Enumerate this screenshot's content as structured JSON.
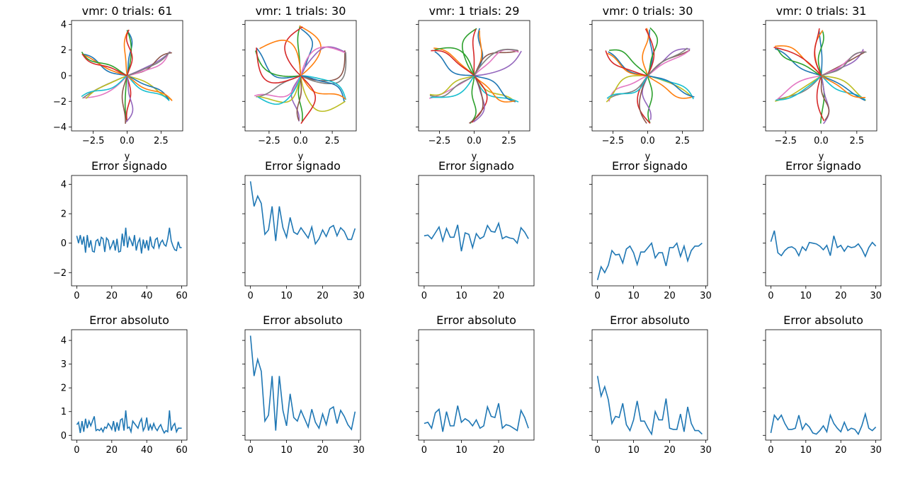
{
  "colors": {
    "series": [
      "#1f77b4",
      "#ff7f0e",
      "#2ca02c",
      "#d62728",
      "#9467bd",
      "#8c564b",
      "#e377c2",
      "#7f7f7f",
      "#bcbd22",
      "#17becf"
    ],
    "line": "#1f77b4"
  },
  "chart_data": [
    {
      "id": "traj-0",
      "type": "line",
      "title": "vmr: 0 trials: 61",
      "xlabel": "y",
      "xlim": [
        -4.1,
        4.1
      ],
      "ylim": [
        -4.3,
        4.3
      ],
      "xticks": [
        -2.5,
        0.0,
        2.5
      ],
      "xtick_labels": [
        "−2.5",
        "0.0",
        "2.5"
      ],
      "yticks": [
        -4,
        -2,
        0,
        2,
        4
      ],
      "ytick_labels": [
        "−4",
        "−2",
        "0",
        "2",
        "4"
      ],
      "targets": [
        [
          0,
          3.6
        ],
        [
          3.2,
          1.8
        ],
        [
          3.2,
          -1.8
        ],
        [
          0,
          -3.6
        ],
        [
          -3.2,
          -1.8
        ],
        [
          -3.2,
          1.8
        ]
      ],
      "trajectories_per_target": 4,
      "curvature": 0.12
    },
    {
      "id": "traj-1",
      "type": "line",
      "title": "vmr: 1 trials: 30",
      "xlabel": "y",
      "xlim": [
        -4.4,
        4.4
      ],
      "ylim": [
        -4.3,
        4.3
      ],
      "xticks": [
        -2.5,
        0.0,
        2.5
      ],
      "xtick_labels": [
        "−2.5",
        "0.0",
        "2.5"
      ],
      "yticks": [
        -4,
        -2,
        0,
        2,
        4
      ],
      "ytick_labels": [
        "",
        "",
        "",
        "",
        ""
      ],
      "targets": [
        [
          0,
          3.8
        ],
        [
          3.5,
          1.9
        ],
        [
          3.4,
          -2.0
        ],
        [
          0,
          -3.6
        ],
        [
          -3.5,
          -1.7
        ],
        [
          -3.4,
          2.1
        ]
      ],
      "trajectories_per_target": 4,
      "curvature": 0.45
    },
    {
      "id": "traj-2",
      "type": "line",
      "title": "vmr: 1 trials: 29",
      "xlabel": "y",
      "xlim": [
        -4.0,
        4.0
      ],
      "ylim": [
        -4.3,
        4.3
      ],
      "xticks": [
        -2.5,
        0.0,
        2.5
      ],
      "xtick_labels": [
        "−2.5",
        "0.0",
        "2.5"
      ],
      "yticks": [
        -4,
        -2,
        0,
        2,
        4
      ],
      "ytick_labels": [
        "",
        "",
        "",
        "",
        ""
      ],
      "targets": [
        [
          0.3,
          3.6
        ],
        [
          3.3,
          1.8
        ],
        [
          3.1,
          -2.1
        ],
        [
          -0.2,
          -3.7
        ],
        [
          -3.2,
          -1.6
        ],
        [
          -3.0,
          2.0
        ]
      ],
      "trajectories_per_target": 4,
      "curvature": 0.3
    },
    {
      "id": "traj-3",
      "type": "line",
      "title": "vmr: 0 trials: 30",
      "xlabel": "y",
      "xlim": [
        -4.0,
        4.0
      ],
      "ylim": [
        -4.3,
        4.3
      ],
      "xticks": [
        -2.5,
        0.0,
        2.5
      ],
      "xtick_labels": [
        "−2.5",
        "0.0",
        "2.5"
      ],
      "yticks": [
        -4,
        -2,
        0,
        2,
        4
      ],
      "ytick_labels": [
        "",
        "",
        "",
        "",
        ""
      ],
      "targets": [
        [
          0,
          3.6
        ],
        [
          2.9,
          2.1
        ],
        [
          3.3,
          -1.8
        ],
        [
          0.1,
          -3.6
        ],
        [
          -2.9,
          -1.9
        ],
        [
          -2.9,
          1.8
        ]
      ],
      "trajectories_per_target": 4,
      "curvature": 0.25
    },
    {
      "id": "traj-4",
      "type": "line",
      "title": "vmr: 0 trials: 31",
      "xlabel": "y",
      "xlim": [
        -3.9,
        3.9
      ],
      "ylim": [
        -4.3,
        4.3
      ],
      "xticks": [
        -2.5,
        0.0,
        2.5
      ],
      "xtick_labels": [
        "−2.5",
        "0.0",
        "2.5"
      ],
      "yticks": [
        -4,
        -2,
        0,
        2,
        4
      ],
      "ytick_labels": [
        "",
        "",
        "",
        "",
        ""
      ],
      "targets": [
        [
          0,
          3.6
        ],
        [
          3.1,
          1.9
        ],
        [
          3.2,
          -1.8
        ],
        [
          0.1,
          -3.6
        ],
        [
          -3.1,
          -1.9
        ],
        [
          -3.2,
          2.2
        ]
      ],
      "trajectories_per_target": 4,
      "curvature": 0.15
    },
    {
      "id": "signed-0",
      "type": "line",
      "title": "Error signado",
      "xlim": [
        -3,
        63
      ],
      "ylim": [
        -2.9,
        4.6
      ],
      "xticks": [
        0,
        20,
        40,
        60
      ],
      "xtick_labels": [
        "0",
        "20",
        "40",
        "60"
      ],
      "yticks": [
        -2,
        0,
        2,
        4
      ],
      "ytick_labels": [
        "−2",
        "0",
        "2",
        "4"
      ],
      "values": [
        0.5,
        0.0,
        0.55,
        -0.1,
        0.45,
        -0.65,
        0.55,
        -0.3,
        0.2,
        -0.55,
        -0.6,
        0.15,
        0.25,
        -0.2,
        0.4,
        0.3,
        -0.6,
        0.35,
        0.2,
        -0.4,
        -0.15,
        0.2,
        -0.5,
        0.3,
        -0.6,
        -0.55,
        0.65,
        -0.2,
        1.05,
        -0.3,
        0.4,
        0.15,
        -0.2,
        0.55,
        -0.5,
        0.05,
        0.3,
        -0.7,
        0.25,
        -0.35,
        0.2,
        -0.5,
        0.45,
        -0.2,
        -0.35,
        0.25,
        0.35,
        -0.3,
        0.05,
        0.2,
        -0.1,
        -0.2,
        0.3,
        1.05,
        0.15,
        -0.2,
        -0.45,
        -0.5,
        0.1,
        -0.3,
        -0.3
      ]
    },
    {
      "id": "signed-1",
      "type": "line",
      "title": "Error signado",
      "xlim": [
        -1.5,
        30.5
      ],
      "ylim": [
        -2.9,
        4.6
      ],
      "xticks": [
        0,
        10,
        20,
        30
      ],
      "xtick_labels": [
        "0",
        "10",
        "20",
        "30"
      ],
      "yticks": [
        -2,
        0,
        2,
        4
      ],
      "ytick_labels": [
        "",
        "",
        "",
        ""
      ],
      "values": [
        4.2,
        2.5,
        3.2,
        2.7,
        0.6,
        0.9,
        2.5,
        0.15,
        2.5,
        1.05,
        0.4,
        1.75,
        0.75,
        0.6,
        1.05,
        0.7,
        0.35,
        1.1,
        -0.05,
        0.3,
        0.9,
        0.45,
        1.05,
        1.2,
        0.5,
        1.05,
        0.8,
        0.25,
        0.25,
        1.0
      ]
    },
    {
      "id": "signed-2",
      "type": "line",
      "title": "Error signado",
      "xlim": [
        -1.5,
        29.5
      ],
      "ylim": [
        -2.9,
        4.6
      ],
      "xticks": [
        0,
        10,
        20
      ],
      "xtick_labels": [
        "0",
        "10",
        "20"
      ],
      "yticks": [
        -2,
        0,
        2,
        4
      ],
      "ytick_labels": [
        "",
        "",
        "",
        ""
      ],
      "values": [
        0.5,
        0.55,
        0.3,
        0.7,
        1.1,
        0.15,
        1.0,
        0.4,
        0.4,
        1.25,
        -0.55,
        0.7,
        0.6,
        -0.3,
        0.65,
        0.3,
        0.45,
        1.2,
        0.8,
        0.75,
        1.35,
        0.3,
        0.45,
        0.35,
        0.3,
        0.0,
        1.05,
        0.75,
        0.3
      ]
    },
    {
      "id": "signed-3",
      "type": "line",
      "title": "Error signado",
      "xlim": [
        -1.5,
        30.5
      ],
      "ylim": [
        -2.9,
        4.6
      ],
      "xticks": [
        0,
        10,
        20,
        30
      ],
      "xtick_labels": [
        "0",
        "10",
        "20",
        "30"
      ],
      "yticks": [
        -2,
        0,
        2,
        4
      ],
      "ytick_labels": [
        "",
        "",
        "",
        ""
      ],
      "values": [
        -2.5,
        -1.6,
        -2.0,
        -1.5,
        -0.5,
        -0.8,
        -0.75,
        -1.35,
        -0.4,
        -0.2,
        -0.65,
        -1.45,
        -0.6,
        -0.6,
        -0.3,
        0.0,
        -1.0,
        -0.65,
        -0.65,
        -1.55,
        -0.3,
        -0.3,
        0.0,
        -0.9,
        -0.2,
        -1.2,
        -0.5,
        -0.2,
        -0.2,
        0.0
      ]
    },
    {
      "id": "signed-4",
      "type": "line",
      "title": "Error signado",
      "xlim": [
        -1.5,
        31.5
      ],
      "ylim": [
        -2.9,
        4.6
      ],
      "xticks": [
        0,
        10,
        20,
        30
      ],
      "xtick_labels": [
        "0",
        "10",
        "20",
        "30"
      ],
      "yticks": [
        -2,
        0,
        2,
        4
      ],
      "ytick_labels": [
        "",
        "",
        "",
        ""
      ],
      "values": [
        0.1,
        0.85,
        -0.65,
        -0.85,
        -0.5,
        -0.3,
        -0.25,
        -0.4,
        -0.85,
        -0.25,
        -0.5,
        0.05,
        0.0,
        -0.05,
        -0.2,
        -0.45,
        -0.15,
        -0.85,
        0.5,
        -0.3,
        -0.15,
        -0.55,
        -0.2,
        -0.3,
        -0.25,
        -0.05,
        -0.4,
        -0.9,
        -0.3,
        0.05,
        -0.2
      ]
    },
    {
      "id": "abs-0",
      "type": "line",
      "title": "Error absoluto",
      "xlim": [
        -3,
        63
      ],
      "ylim": [
        -0.2,
        4.45
      ],
      "xticks": [
        0,
        20,
        40,
        60
      ],
      "xtick_labels": [
        "0",
        "20",
        "40",
        "60"
      ],
      "yticks": [
        0,
        1,
        2,
        3,
        4
      ],
      "ytick_labels": [
        "0",
        "1",
        "2",
        "3",
        "4"
      ],
      "values": [
        0.45,
        0.55,
        0.1,
        0.6,
        0.15,
        0.7,
        0.3,
        0.6,
        0.4,
        0.6,
        0.8,
        0.2,
        0.25,
        0.2,
        0.3,
        0.15,
        0.35,
        0.3,
        0.5,
        0.4,
        0.25,
        0.6,
        0.15,
        0.55,
        0.2,
        0.65,
        0.7,
        0.2,
        1.05,
        0.3,
        0.35,
        0.15,
        0.6,
        0.5,
        0.4,
        0.3,
        0.55,
        0.7,
        0.2,
        0.35,
        0.75,
        0.2,
        0.45,
        0.25,
        0.5,
        0.3,
        0.2,
        0.35,
        0.45,
        0.25,
        0.1,
        0.2,
        0.15,
        1.05,
        0.2,
        0.4,
        0.5,
        0.15,
        0.3,
        0.3,
        0.3
      ]
    },
    {
      "id": "abs-1",
      "type": "line",
      "title": "Error absoluto",
      "xlim": [
        -1.5,
        30.5
      ],
      "ylim": [
        -0.2,
        4.45
      ],
      "xticks": [
        0,
        10,
        20,
        30
      ],
      "xtick_labels": [
        "0",
        "10",
        "20",
        "30"
      ],
      "yticks": [
        0,
        1,
        2,
        3,
        4
      ],
      "ytick_labels": [
        "",
        "",
        "",
        "",
        ""
      ],
      "values": [
        4.2,
        2.5,
        3.2,
        2.7,
        0.6,
        0.85,
        2.5,
        0.2,
        2.5,
        1.05,
        0.4,
        1.75,
        0.75,
        0.6,
        1.05,
        0.7,
        0.35,
        1.1,
        0.55,
        0.3,
        0.9,
        0.45,
        1.1,
        1.2,
        0.5,
        1.05,
        0.8,
        0.45,
        0.25,
        1.0
      ]
    },
    {
      "id": "abs-2",
      "type": "line",
      "title": "Error absoluto",
      "xlim": [
        -1.5,
        29.5
      ],
      "ylim": [
        -0.2,
        4.45
      ],
      "xticks": [
        0,
        10,
        20
      ],
      "xtick_labels": [
        "0",
        "10",
        "20"
      ],
      "yticks": [
        0,
        1,
        2,
        3,
        4
      ],
      "ytick_labels": [
        "",
        "",
        "",
        "",
        ""
      ],
      "values": [
        0.5,
        0.55,
        0.3,
        0.95,
        1.1,
        0.15,
        1.0,
        0.4,
        0.4,
        1.25,
        0.55,
        0.7,
        0.6,
        0.4,
        0.65,
        0.3,
        0.4,
        1.2,
        0.8,
        0.75,
        1.35,
        0.3,
        0.45,
        0.4,
        0.3,
        0.2,
        1.05,
        0.75,
        0.3
      ]
    },
    {
      "id": "abs-3",
      "type": "line",
      "title": "Error absoluto",
      "xlim": [
        -1.5,
        30.5
      ],
      "ylim": [
        -0.2,
        4.45
      ],
      "xticks": [
        0,
        10,
        20,
        30
      ],
      "xtick_labels": [
        "0",
        "10",
        "20",
        "30"
      ],
      "yticks": [
        0,
        1,
        2,
        3,
        4
      ],
      "ytick_labels": [
        "",
        "",
        "",
        "",
        ""
      ],
      "values": [
        2.5,
        1.65,
        2.05,
        1.5,
        0.5,
        0.8,
        0.75,
        1.35,
        0.45,
        0.2,
        0.65,
        1.45,
        0.6,
        0.6,
        0.3,
        0.05,
        1.0,
        0.65,
        0.65,
        1.55,
        0.3,
        0.25,
        0.25,
        0.9,
        0.15,
        1.2,
        0.5,
        0.2,
        0.2,
        0.05
      ]
    },
    {
      "id": "abs-4",
      "type": "line",
      "title": "Error absoluto",
      "xlim": [
        -1.5,
        31.5
      ],
      "ylim": [
        -0.2,
        4.45
      ],
      "xticks": [
        0,
        10,
        20,
        30
      ],
      "xtick_labels": [
        "0",
        "10",
        "20",
        "30"
      ],
      "yticks": [
        0,
        1,
        2,
        3,
        4
      ],
      "ytick_labels": [
        "",
        "",
        "",
        "",
        ""
      ],
      "values": [
        0.1,
        0.85,
        0.65,
        0.85,
        0.5,
        0.25,
        0.25,
        0.3,
        0.85,
        0.25,
        0.5,
        0.35,
        0.1,
        0.05,
        0.2,
        0.4,
        0.15,
        0.85,
        0.5,
        0.3,
        0.15,
        0.55,
        0.2,
        0.3,
        0.25,
        0.05,
        0.4,
        0.9,
        0.3,
        0.2,
        0.35
      ]
    }
  ]
}
